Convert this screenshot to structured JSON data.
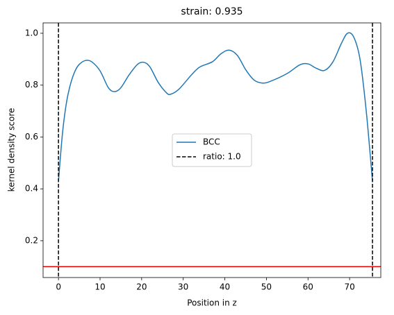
{
  "chart_data": {
    "type": "line",
    "title": "strain: 0.935",
    "xlabel": "Position in z",
    "ylabel": "kernel density score",
    "x": [
      0,
      1,
      2,
      3,
      4,
      5,
      6.5,
      8,
      10,
      12,
      13.5,
      15,
      17,
      19,
      20.5,
      22,
      24,
      26,
      27,
      29,
      32,
      34,
      37,
      39,
      41,
      43,
      45,
      47,
      49,
      51,
      55,
      58,
      60,
      62,
      64,
      66,
      68,
      69.5,
      71,
      72.5,
      74,
      75.5
    ],
    "series": [
      {
        "name": "BCC",
        "color": "#1f77b4",
        "values": [
          0.43,
          0.62,
          0.74,
          0.81,
          0.855,
          0.88,
          0.895,
          0.89,
          0.855,
          0.79,
          0.775,
          0.79,
          0.84,
          0.88,
          0.888,
          0.87,
          0.81,
          0.77,
          0.765,
          0.785,
          0.84,
          0.87,
          0.89,
          0.92,
          0.935,
          0.915,
          0.86,
          0.82,
          0.808,
          0.815,
          0.845,
          0.878,
          0.882,
          0.865,
          0.857,
          0.89,
          0.96,
          1.0,
          0.985,
          0.9,
          0.7,
          0.43
        ]
      }
    ],
    "vlines": {
      "name": "ratio: 1.0",
      "color": "#000000",
      "values": [
        0,
        75.5
      ]
    },
    "hline": {
      "color": "#ff0000",
      "value": 0.1
    },
    "xlim": [
      -3.7,
      77.5
    ],
    "ylim": [
      0.058,
      1.04
    ],
    "xticks": [
      0,
      10,
      20,
      30,
      40,
      50,
      60,
      70
    ],
    "yticks": [
      0.2,
      0.4,
      0.6,
      0.8,
      {
        "value": 1,
        "label": "1.0"
      }
    ],
    "legend": "center"
  }
}
